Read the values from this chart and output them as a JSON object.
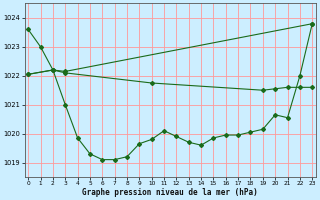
{
  "title": "Graphe pression niveau de la mer (hPa)",
  "background_color": "#cceeff",
  "grid_color": "#ff9999",
  "line_color": "#1a6b1a",
  "ylim": [
    1018.5,
    1024.5
  ],
  "xlim": [
    -0.3,
    23.3
  ],
  "yticks": [
    1019,
    1020,
    1021,
    1022,
    1023,
    1024
  ],
  "xticks": [
    0,
    1,
    2,
    3,
    4,
    5,
    6,
    7,
    8,
    9,
    10,
    11,
    12,
    13,
    14,
    15,
    16,
    17,
    18,
    19,
    20,
    21,
    22,
    23
  ],
  "line1_x": [
    0,
    1,
    2,
    3,
    4,
    5,
    6,
    7,
    8,
    9,
    10,
    11,
    12,
    13,
    14,
    15,
    16,
    17,
    18,
    19,
    20,
    21,
    22,
    23
  ],
  "line1_y": [
    1023.6,
    1023.0,
    1022.2,
    1021.0,
    1019.85,
    1019.3,
    1019.1,
    1019.1,
    1019.2,
    1019.65,
    1019.8,
    1020.1,
    1019.9,
    1019.7,
    1019.6,
    1019.85,
    1019.95,
    1019.95,
    1020.05,
    1020.15,
    1020.65,
    1020.55,
    1022.0,
    1023.8
  ],
  "line2_x": [
    0,
    2,
    3,
    23
  ],
  "line2_y": [
    1022.05,
    1022.2,
    1022.15,
    1023.8
  ],
  "line3_x": [
    0,
    2,
    3,
    10,
    19,
    20,
    21,
    22,
    23
  ],
  "line3_y": [
    1022.05,
    1022.2,
    1022.1,
    1021.75,
    1021.5,
    1021.55,
    1021.6,
    1021.6,
    1021.6
  ]
}
